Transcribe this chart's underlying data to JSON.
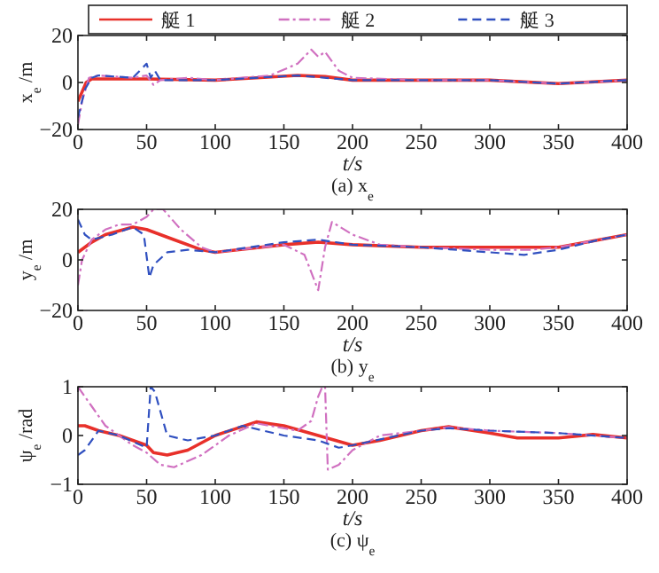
{
  "chart_data": [
    {
      "type": "line",
      "xlabel": "t/s",
      "ylabel": "x$_{e}$ /m",
      "annotations": [
        "(a) x$_{e}$"
      ],
      "xlim": [
        0,
        400
      ],
      "ylim": [
        -20,
        20
      ],
      "xticks": [
        0,
        50,
        100,
        150,
        200,
        250,
        300,
        350,
        400
      ],
      "yticks": [
        -20,
        0,
        20
      ],
      "grid": false,
      "legend": "top",
      "marker": "none",
      "series": [
        {
          "name": "艇 1",
          "color": "#e8302a",
          "line_style": "solid",
          "x": [
            0,
            3,
            6,
            10,
            20,
            50,
            100,
            130,
            160,
            180,
            200,
            250,
            300,
            350,
            400
          ],
          "values": [
            -8,
            -4,
            0,
            1.5,
            1.5,
            1.5,
            1,
            2,
            3,
            2.5,
            1,
            1,
            1,
            -0.5,
            1
          ]
        },
        {
          "name": "艇 2",
          "color": "#d070c0",
          "line_style": "dashdot",
          "x": [
            0,
            3,
            8,
            15,
            40,
            50,
            55,
            60,
            80,
            100,
            140,
            160,
            170,
            175,
            180,
            190,
            200,
            250,
            300,
            350,
            400
          ],
          "values": [
            -18,
            -8,
            2,
            3,
            2,
            3,
            -1,
            1,
            2,
            1,
            3,
            8,
            14,
            11,
            13,
            5,
            2,
            1,
            1,
            -0.5,
            1
          ]
        },
        {
          "name": "艇 3",
          "color": "#3050c0",
          "line_style": "dashed",
          "x": [
            0,
            5,
            10,
            15,
            40,
            50,
            53,
            56,
            60,
            100,
            160,
            200,
            250,
            300,
            350,
            400
          ],
          "values": [
            -15,
            -3,
            2,
            3,
            2,
            8,
            2,
            5,
            1,
            1,
            3,
            1,
            1,
            1,
            -0.5,
            1
          ]
        }
      ]
    },
    {
      "type": "line",
      "xlabel": "t/s",
      "ylabel": "y$_{e}$ /m",
      "annotations": [
        "(b) y$_{e}$"
      ],
      "xlim": [
        0,
        400
      ],
      "ylim": [
        -20,
        20
      ],
      "xticks": [
        0,
        50,
        100,
        150,
        200,
        250,
        300,
        350,
        400
      ],
      "yticks": [
        -20,
        0,
        20
      ],
      "grid": false,
      "marker": "none",
      "series": [
        {
          "color": "#e8302a",
          "line_style": "solid",
          "x": [
            0,
            10,
            20,
            40,
            50,
            70,
            90,
            100,
            150,
            175,
            200,
            250,
            300,
            350,
            380,
            400
          ],
          "values": [
            3,
            7,
            10,
            13,
            12,
            8,
            4,
            3,
            6,
            7,
            6,
            5,
            5,
            5,
            8,
            10
          ]
        },
        {
          "color": "#d070c0",
          "line_style": "dashdot",
          "x": [
            0,
            3,
            10,
            20,
            30,
            40,
            50,
            55,
            62,
            75,
            90,
            100,
            150,
            165,
            175,
            180,
            185,
            200,
            220,
            250,
            300,
            330,
            350,
            400
          ],
          "values": [
            -10,
            0,
            8,
            12,
            14,
            14,
            17,
            20,
            20,
            12,
            5,
            3,
            6,
            2,
            -12,
            5,
            15,
            10,
            6,
            5,
            4,
            4,
            5,
            10
          ]
        },
        {
          "color": "#3050c0",
          "line_style": "dashed",
          "x": [
            0,
            5,
            10,
            25,
            40,
            48,
            52,
            55,
            65,
            80,
            100,
            150,
            175,
            200,
            250,
            300,
            325,
            350,
            380,
            400
          ],
          "values": [
            16,
            10,
            8,
            10,
            13,
            10,
            -7,
            -2,
            3,
            4,
            3,
            7,
            8,
            6,
            5,
            3,
            2,
            4,
            8,
            10
          ]
        }
      ]
    },
    {
      "type": "line",
      "xlabel": "t/s",
      "ylabel": "ψ$_{e}$ /rad",
      "annotations": [
        "(c) ψ$_{e}$"
      ],
      "xlim": [
        0,
        400
      ],
      "ylim": [
        -1,
        1
      ],
      "xticks": [
        0,
        50,
        100,
        150,
        200,
        250,
        300,
        350,
        400
      ],
      "yticks": [
        -1,
        0,
        1
      ],
      "grid": false,
      "marker": "none",
      "series": [
        {
          "color": "#e8302a",
          "line_style": "solid",
          "x": [
            0,
            5,
            15,
            30,
            50,
            55,
            65,
            80,
            100,
            130,
            150,
            175,
            200,
            220,
            250,
            270,
            300,
            320,
            350,
            375,
            400
          ],
          "values": [
            0.2,
            0.2,
            0.1,
            0,
            -0.2,
            -0.35,
            -0.4,
            -0.3,
            0,
            0.28,
            0.2,
            0,
            -0.2,
            -0.1,
            0.1,
            0.18,
            0.05,
            -0.05,
            -0.05,
            0.02,
            -0.05
          ]
        },
        {
          "color": "#d070c0",
          "line_style": "dashdot",
          "x": [
            0,
            10,
            20,
            40,
            50,
            60,
            70,
            90,
            110,
            130,
            160,
            170,
            175,
            178,
            180,
            182,
            190,
            200,
            220,
            250,
            270,
            300,
            350,
            400
          ],
          "values": [
            1,
            0.6,
            0.2,
            -0.2,
            -0.35,
            -0.6,
            -0.65,
            -0.4,
            0,
            0.25,
            0.1,
            0.3,
            0.8,
            1,
            1,
            -0.7,
            -0.6,
            -0.3,
            0,
            0.1,
            0.17,
            0.1,
            0.05,
            -0.05
          ]
        },
        {
          "color": "#3050c0",
          "line_style": "dashed",
          "x": [
            0,
            5,
            15,
            30,
            50,
            53,
            56,
            65,
            80,
            100,
            120,
            150,
            175,
            190,
            200,
            250,
            270,
            300,
            350,
            400
          ],
          "values": [
            -0.4,
            -0.3,
            0.1,
            0,
            -0.25,
            1,
            0.9,
            0,
            -0.1,
            0,
            0.2,
            0,
            -0.1,
            -0.25,
            -0.2,
            0.1,
            0.15,
            0.1,
            0.05,
            -0.05
          ]
        }
      ]
    }
  ]
}
